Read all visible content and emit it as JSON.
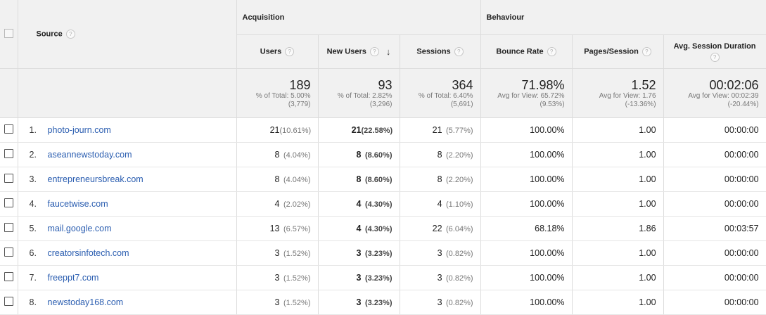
{
  "header": {
    "source_label": "Source",
    "acquisition_label": "Acquisition",
    "behaviour_label": "Behaviour",
    "columns": {
      "users": "Users",
      "new_users": "New Users",
      "sessions": "Sessions",
      "bounce_rate": "Bounce Rate",
      "pages_session": "Pages/Session",
      "avg_duration": "Avg. Session Duration"
    },
    "help_glyph": "?"
  },
  "totals": {
    "users": {
      "value": "189",
      "sub1": "% of Total: 5.00%",
      "sub2": "(3,779)"
    },
    "new_users": {
      "value": "93",
      "sub1": "% of Total: 2.82%",
      "sub2": "(3,296)"
    },
    "sessions": {
      "value": "364",
      "sub1": "% of Total: 6.40%",
      "sub2": "(5,691)"
    },
    "bounce_rate": {
      "value": "71.98%",
      "sub1": "Avg for View: 65.72%",
      "sub2": "(9.53%)"
    },
    "pages_session": {
      "value": "1.52",
      "sub1": "Avg for View: 1.76",
      "sub2": "(-13.36%)"
    },
    "avg_duration": {
      "value": "00:02:06",
      "sub1": "Avg for View: 00:02:39",
      "sub2": "(-20.44%)"
    }
  },
  "rows": [
    {
      "idx": "1.",
      "source": "photo-journ.com",
      "users": "21",
      "users_pct": "(10.61%)",
      "new_users": "21",
      "new_users_pct": "(22.58%)",
      "sessions": "21",
      "sessions_pct": "(5.77%)",
      "bounce": "100.00%",
      "pages": "1.00",
      "duration": "00:00:00"
    },
    {
      "idx": "2.",
      "source": "aseannewstoday.com",
      "users": "8",
      "users_pct": "(4.04%)",
      "new_users": "8",
      "new_users_pct": "(8.60%)",
      "sessions": "8",
      "sessions_pct": "(2.20%)",
      "bounce": "100.00%",
      "pages": "1.00",
      "duration": "00:00:00"
    },
    {
      "idx": "3.",
      "source": "entrepreneursbreak.com",
      "users": "8",
      "users_pct": "(4.04%)",
      "new_users": "8",
      "new_users_pct": "(8.60%)",
      "sessions": "8",
      "sessions_pct": "(2.20%)",
      "bounce": "100.00%",
      "pages": "1.00",
      "duration": "00:00:00"
    },
    {
      "idx": "4.",
      "source": "faucetwise.com",
      "users": "4",
      "users_pct": "(2.02%)",
      "new_users": "4",
      "new_users_pct": "(4.30%)",
      "sessions": "4",
      "sessions_pct": "(1.10%)",
      "bounce": "100.00%",
      "pages": "1.00",
      "duration": "00:00:00"
    },
    {
      "idx": "5.",
      "source": "mail.google.com",
      "users": "13",
      "users_pct": "(6.57%)",
      "new_users": "4",
      "new_users_pct": "(4.30%)",
      "sessions": "22",
      "sessions_pct": "(6.04%)",
      "bounce": "68.18%",
      "pages": "1.86",
      "duration": "00:03:57"
    },
    {
      "idx": "6.",
      "source": "creatorsinfotech.com",
      "users": "3",
      "users_pct": "(1.52%)",
      "new_users": "3",
      "new_users_pct": "(3.23%)",
      "sessions": "3",
      "sessions_pct": "(0.82%)",
      "bounce": "100.00%",
      "pages": "1.00",
      "duration": "00:00:00"
    },
    {
      "idx": "7.",
      "source": "freeppt7.com",
      "users": "3",
      "users_pct": "(1.52%)",
      "new_users": "3",
      "new_users_pct": "(3.23%)",
      "sessions": "3",
      "sessions_pct": "(0.82%)",
      "bounce": "100.00%",
      "pages": "1.00",
      "duration": "00:00:00"
    },
    {
      "idx": "8.",
      "source": "newstoday168.com",
      "users": "3",
      "users_pct": "(1.52%)",
      "new_users": "3",
      "new_users_pct": "(3.23%)",
      "sessions": "3",
      "sessions_pct": "(0.82%)",
      "bounce": "100.00%",
      "pages": "1.00",
      "duration": "00:00:00"
    }
  ]
}
